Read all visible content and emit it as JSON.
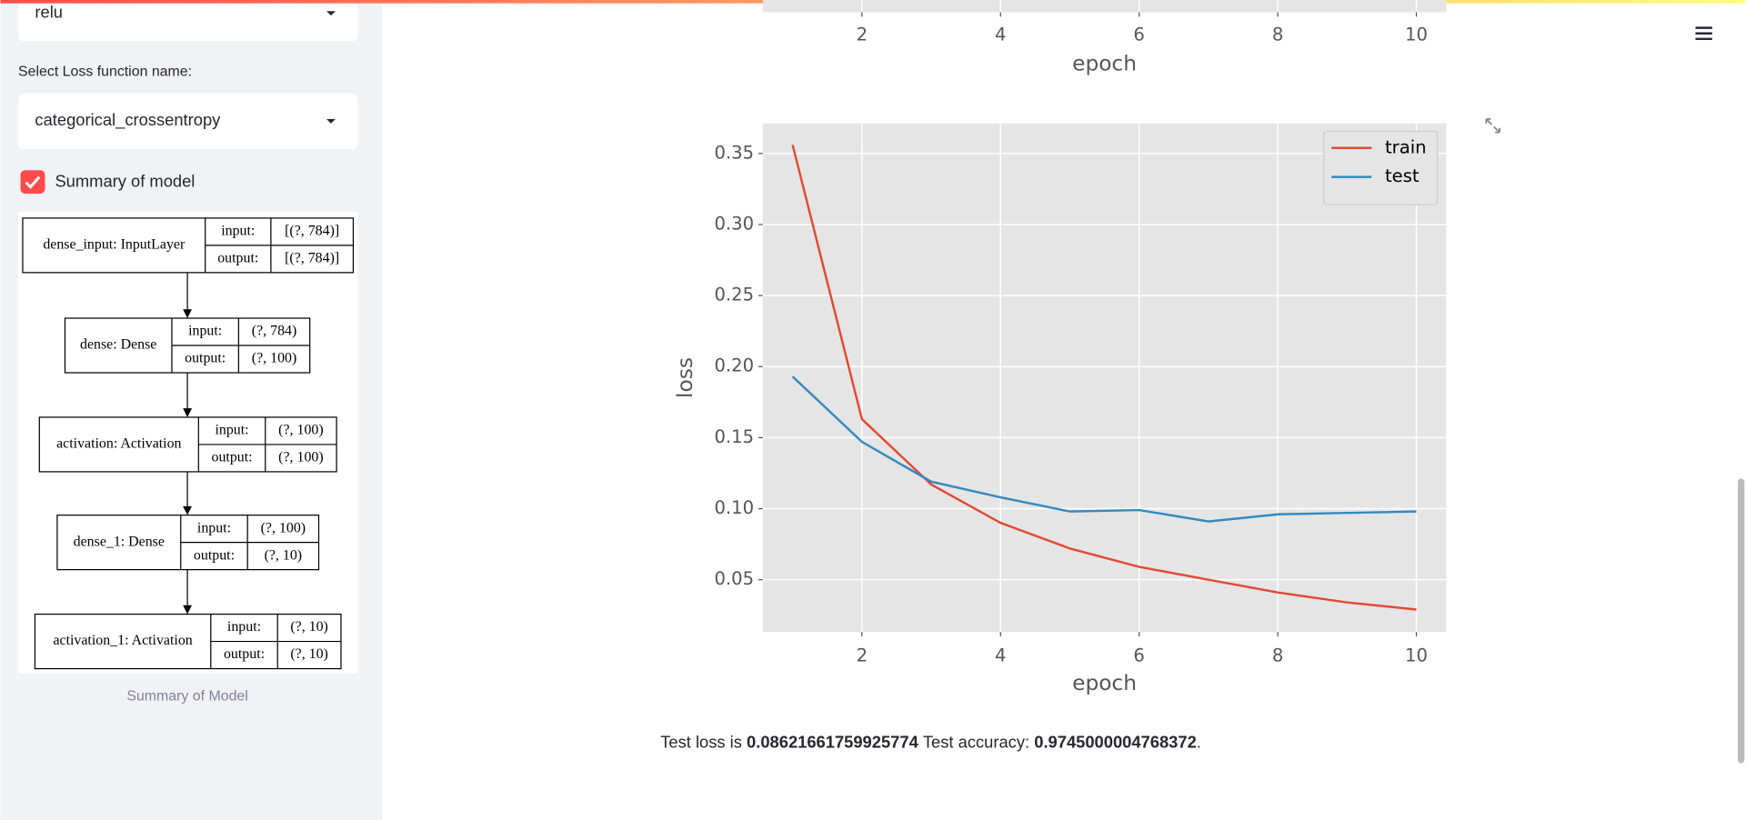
{
  "sidebar": {
    "activation_value": "relu",
    "loss_label": "Select Loss function name:",
    "loss_value": "categorical_crossentropy",
    "checkbox_label": "Summary of model",
    "caption": "Summary of Model"
  },
  "diagram": {
    "nodes": [
      {
        "name": "dense_input: InputLayer",
        "input_label": "input:",
        "output_label": "output:",
        "input": "[(?, 784)]",
        "output": "[(?, 784)]"
      },
      {
        "name": "dense: Dense",
        "input_label": "input:",
        "output_label": "output:",
        "input": "(?, 784)",
        "output": "(?, 100)"
      },
      {
        "name": "activation: Activation",
        "input_label": "input:",
        "output_label": "output:",
        "input": "(?, 100)",
        "output": "(?, 100)"
      },
      {
        "name": "dense_1: Dense",
        "input_label": "input:",
        "output_label": "output:",
        "input": "(?, 100)",
        "output": "(?, 10)"
      },
      {
        "name": "activation_1: Activation",
        "input_label": "input:",
        "output_label": "output:",
        "input": "(?, 10)",
        "output": "(?, 10)"
      }
    ]
  },
  "chart_data": [
    {
      "type": "line",
      "xlabel": "epoch",
      "xlim": [
        0.57,
        10.43
      ],
      "xticks": [
        2,
        4,
        6,
        8,
        10
      ],
      "grid": true
    },
    {
      "type": "line",
      "xlabel": "epoch",
      "ylabel": "loss",
      "x": [
        1,
        2,
        3,
        4,
        5,
        6,
        7,
        8,
        9,
        10
      ],
      "series": [
        {
          "name": "train",
          "color": "#E24A33",
          "values": [
            0.356,
            0.163,
            0.117,
            0.09,
            0.072,
            0.059,
            0.05,
            0.041,
            0.034,
            0.029
          ]
        },
        {
          "name": "test",
          "color": "#348ABD",
          "values": [
            0.193,
            0.147,
            0.119,
            0.108,
            0.098,
            0.099,
            0.091,
            0.096,
            0.097,
            0.098
          ]
        }
      ],
      "xlim": [
        0.57,
        10.43
      ],
      "xticks": [
        2,
        4,
        6,
        8,
        10
      ],
      "ylim": [
        0.0132,
        0.3711
      ],
      "yticks": [
        0.05,
        {
          "value": 0.1,
          "label": "0.10"
        },
        0.15,
        {
          "value": 0.2,
          "label": "0.20"
        },
        0.25,
        {
          "value": 0.3,
          "label": "0.30"
        },
        0.35
      ],
      "grid": true,
      "legend": "upper right"
    }
  ],
  "result": {
    "loss_label": "Test loss is",
    "loss": 0.08621661759925774,
    "accuracy_label": "Test accuracy:",
    "accuracy": 0.9745000004768372,
    "end": "."
  }
}
